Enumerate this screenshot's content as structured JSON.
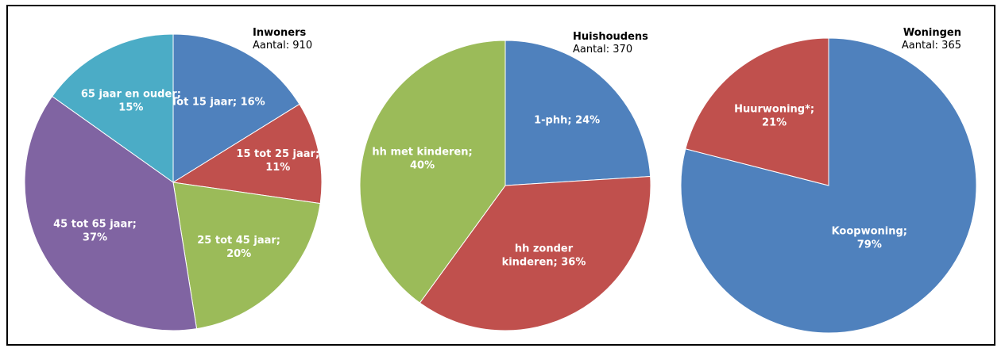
{
  "chart_data": [
    {
      "type": "pie",
      "title": "Inwoners",
      "subtitle": "Aantal: 910",
      "categories": [
        "Tot 15 jaar",
        "15 tot 25 jaar",
        "25 tot 45 jaar",
        "45 tot 65 jaar",
        "65 jaar en ouder"
      ],
      "values": [
        16,
        11,
        20,
        37,
        15
      ],
      "colors": [
        "#4f81bd",
        "#c0504d",
        "#9bbb59",
        "#8064a2",
        "#4bacc6"
      ],
      "labels": [
        [
          "Tot 15 jaar; 16%"
        ],
        [
          "15 tot 25 jaar;",
          "11%"
        ],
        [
          "25 tot 45 jaar;",
          "20%"
        ],
        [
          "45 tot 65 jaar;",
          "37%"
        ],
        [
          "65 jaar en ouder;",
          "15%"
        ]
      ]
    },
    {
      "type": "pie",
      "title": "Huishoudens",
      "subtitle": "Aantal: 370",
      "categories": [
        "1-phh",
        "hh zonder kinderen",
        "hh met kinderen"
      ],
      "values": [
        24,
        36,
        40
      ],
      "colors": [
        "#4f81bd",
        "#c0504d",
        "#9bbb59"
      ],
      "labels": [
        [
          "1-phh; 24%"
        ],
        [
          "hh zonder",
          "kinderen; 36%"
        ],
        [
          "hh met kinderen;",
          "40%"
        ]
      ]
    },
    {
      "type": "pie",
      "title": "Woningen",
      "subtitle": "Aantal: 365",
      "categories": [
        "Koopwoning",
        "Huurwoning*"
      ],
      "values": [
        79,
        21
      ],
      "colors": [
        "#4f81bd",
        "#c0504d"
      ],
      "labels": [
        [
          "Koopwoning;",
          "79%"
        ],
        [
          "Huurwoning*;",
          "21%"
        ]
      ]
    }
  ]
}
